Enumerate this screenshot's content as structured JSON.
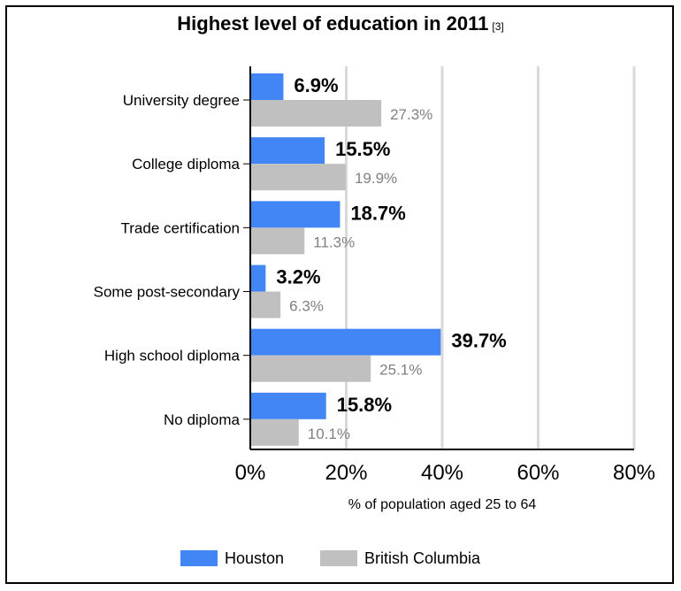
{
  "chart_data": {
    "type": "bar",
    "orientation": "horizontal",
    "title": "Highest level of education in 2011",
    "title_ref": "[3]",
    "categories": [
      "University degree",
      "College diploma",
      "Trade certification",
      "Some post-secondary",
      "High school diploma",
      "No diploma"
    ],
    "series": [
      {
        "name": "Houston",
        "color": "#4285f4",
        "values": [
          6.9,
          15.5,
          18.7,
          3.2,
          39.7,
          15.8
        ],
        "labels": [
          "6.9%",
          "15.5%",
          "18.7%",
          "3.2%",
          "39.7%",
          "15.8%"
        ]
      },
      {
        "name": "British Columbia",
        "color": "#c0c0c0",
        "values": [
          27.3,
          19.9,
          11.3,
          6.3,
          25.1,
          10.1
        ],
        "labels": [
          "27.3%",
          "19.9%",
          "11.3%",
          "6.3%",
          "25.1%",
          "10.1%"
        ]
      }
    ],
    "xlabel": "% of population aged 25 to 64",
    "xlim": [
      0,
      80
    ],
    "xticks": [
      0,
      20,
      40,
      60,
      80
    ],
    "xtick_labels": [
      "0%",
      "20%",
      "40%",
      "60%",
      "80%"
    ],
    "grid": true,
    "legend_position": "bottom"
  }
}
